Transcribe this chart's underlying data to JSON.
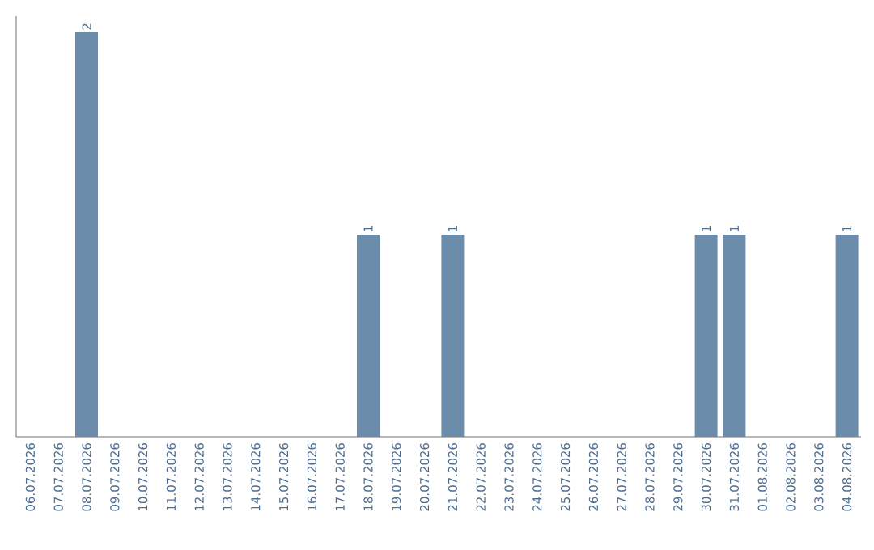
{
  "chart_data": {
    "type": "bar",
    "categories": [
      "06.07.2026",
      "07.07.2026",
      "08.07.2026",
      "09.07.2026",
      "10.07.2026",
      "11.07.2026",
      "12.07.2026",
      "13.07.2026",
      "14.07.2026",
      "15.07.2026",
      "16.07.2026",
      "17.07.2026",
      "18.07.2026",
      "19.07.2026",
      "20.07.2026",
      "21.07.2026",
      "22.07.2026",
      "23.07.2026",
      "24.07.2026",
      "25.07.2026",
      "26.07.2026",
      "27.07.2026",
      "28.07.2026",
      "29.07.2026",
      "30.07.2026",
      "31.07.2026",
      "01.08.2026",
      "02.08.2026",
      "03.08.2026",
      "04.08.2026"
    ],
    "values": [
      0,
      0,
      2,
      0,
      0,
      0,
      0,
      0,
      0,
      0,
      0,
      0,
      1,
      0,
      0,
      1,
      0,
      0,
      0,
      0,
      0,
      0,
      0,
      0,
      1,
      1,
      0,
      0,
      0,
      1
    ],
    "value_labels": [
      null,
      null,
      "2",
      null,
      null,
      null,
      null,
      null,
      null,
      null,
      null,
      null,
      "1",
      null,
      null,
      "1",
      null,
      null,
      null,
      null,
      null,
      null,
      null,
      null,
      "1",
      "1",
      null,
      null,
      null,
      "1"
    ],
    "color": "#6b8cab"
  }
}
